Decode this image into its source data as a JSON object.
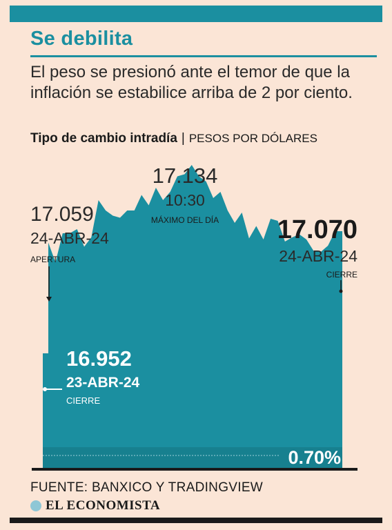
{
  "header": {
    "title": "Se debilita",
    "subtitle": "El peso se presionó ante el temor de que la inflación se estabilice arriba de 2 por ciento."
  },
  "chart_heading": {
    "title": "Tipo de cambio intradía",
    "separator": "|",
    "units": "PESOS POR DÓLARES"
  },
  "annotations": {
    "open": {
      "value": "17.059",
      "date": "24-ABR-24",
      "label": "APERTURA"
    },
    "max": {
      "value": "17.134",
      "time": "10:30",
      "label": "MÁXIMO DEL DÍA"
    },
    "close": {
      "value": "17.070",
      "date": "24-ABR-24",
      "label": "CIERRE"
    },
    "prev_close": {
      "value": "16.952",
      "date": "23-ABR-24",
      "label": "CIERRE"
    },
    "change": "0.70%"
  },
  "chart_data": {
    "type": "area",
    "ylim": [
      16.84,
      17.16
    ],
    "grid": false,
    "series": [
      {
        "values": [
          16.952,
          17.059,
          17.04,
          17.068,
          17.068,
          17.072,
          17.055,
          17.064,
          17.1,
          17.09,
          17.085,
          17.083,
          17.09,
          17.09,
          17.105,
          17.095,
          17.112,
          17.1,
          17.108,
          17.123,
          17.125,
          17.134,
          17.123,
          17.118,
          17.102,
          17.108,
          17.09,
          17.078,
          17.088,
          17.063,
          17.075,
          17.062,
          17.082,
          17.08,
          17.06,
          17.064,
          17.067,
          17.062,
          17.051,
          17.05,
          17.056,
          17.07,
          17.07
        ]
      }
    ]
  },
  "colors": {
    "accent": "#1b8fa0",
    "background": "#fbe5d6",
    "area": "#1b8fa0",
    "text": "#1a1a1a",
    "white_label": "#ffffff"
  },
  "footer": {
    "source": "FUENTE: BANXICO Y TRADINGVIEW",
    "brand": "EL ECONOMISTA",
    "brand_icon": "globe-icon"
  }
}
